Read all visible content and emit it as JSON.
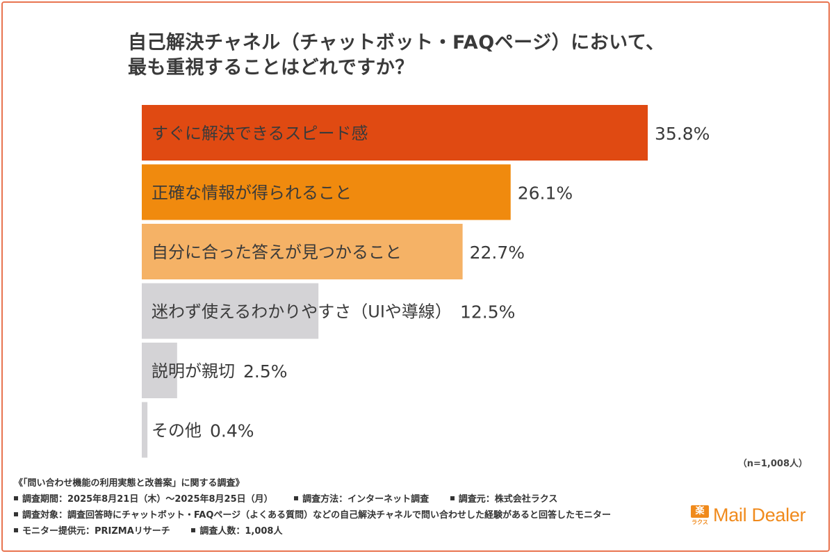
{
  "title_lines": [
    "自己解決チャネル（チャットボット・FAQページ）において、",
    "最も重視することはどれですか？"
  ],
  "chart_data": {
    "type": "bar",
    "orientation": "horizontal",
    "categories": [
      "すぐに解決できるスピード感",
      "正確な情報が得られること",
      "自分に合った答えが見つかること",
      "迷わず使えるわかりやすさ（UIや導線）",
      "説明が親切",
      "その他"
    ],
    "values": [
      35.8,
      26.1,
      22.7,
      12.5,
      2.5,
      0.4
    ],
    "value_labels": [
      "35.8%",
      "26.1%",
      "22.7%",
      "12.5%",
      "2.5%",
      "0.4%"
    ],
    "xlim": [
      0,
      36
    ],
    "colors": [
      "#e04a12",
      "#f08a0e",
      "#f5b266",
      "#d4d3d6",
      "#d4d3d6",
      "#d4d3d6"
    ]
  },
  "sample_note": "（n=1,008人）",
  "footer": {
    "survey_name": "《「問い合わせ機能の利用実態と改善案」に関する調査》",
    "row1": [
      "調査期間：2025年8月21日（木）〜2025年8月25日（月）",
      "調査方法：インターネット調査",
      "調査元：株式会社ラクス"
    ],
    "row2": [
      "調査対象：調査回答時にチャットボット・FAQページ（よくある質問）などの自己解決チャネルで問い合わせした経験があると回答したモニター"
    ],
    "row3": [
      "モニター提供元：PRIZMAリサーチ",
      "調査人数：1,008人"
    ]
  },
  "logo": {
    "mark_top": "楽",
    "mark_bottom": "ラクス",
    "text": "Mail Dealer"
  },
  "colors": {
    "frame": "#e8734f",
    "brand": "#f08a1c"
  }
}
